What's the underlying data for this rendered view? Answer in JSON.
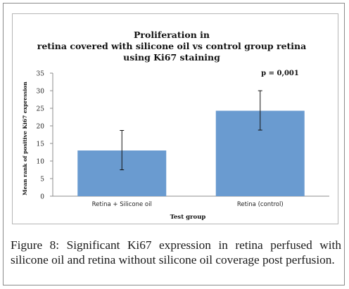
{
  "chart_data": {
    "type": "bar",
    "title": [
      "Proliferation in",
      "retina covered with silicone oil vs control group retina",
      "using Ki67 staining"
    ],
    "categories": [
      "Retina + Silicone oil",
      "Retina (control)"
    ],
    "values": [
      13.0,
      24.3
    ],
    "error_low": [
      7.5,
      18.8
    ],
    "error_high": [
      18.7,
      30.0
    ],
    "xlabel": "Test group",
    "ylabel": "Mean rank of positive Ki67 expression",
    "ylim": [
      0,
      35
    ],
    "yticks": [
      "0",
      "5",
      "10",
      "15",
      "20",
      "25",
      "30",
      "35"
    ],
    "annotation": "p = 0,001",
    "bar_color": "#6a9bd0",
    "grid": false,
    "legend": "none"
  },
  "caption": {
    "label": "Figure 8:",
    "text": " Significant Ki67 expression in retina perfused with silicone oil and retina without silicone oil coverage post perfusion."
  }
}
